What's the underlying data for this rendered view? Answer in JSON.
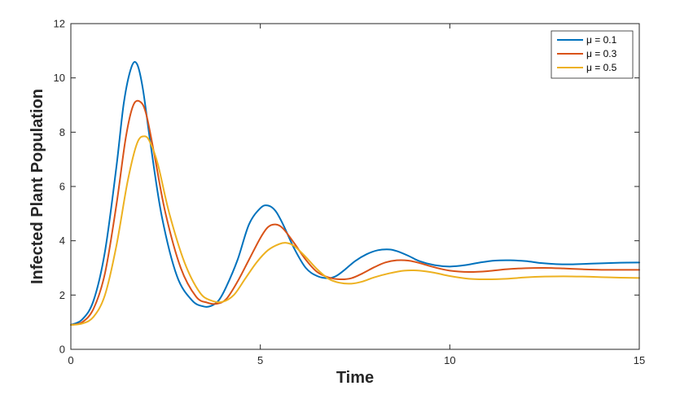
{
  "chart_data": {
    "type": "line",
    "title": "",
    "xlabel": "Time",
    "ylabel": "Infected Plant Population",
    "xlim": [
      0,
      15
    ],
    "ylim": [
      0,
      12
    ],
    "xticks": [
      0,
      5,
      10,
      15
    ],
    "yticks": [
      0,
      2,
      4,
      6,
      8,
      10,
      12
    ],
    "grid": false,
    "legend_position": "top-right",
    "series": [
      {
        "name": "μ = 0.1",
        "color": "#0072BD",
        "x": [
          0,
          0.3,
          0.6,
          0.9,
          1.2,
          1.4,
          1.6,
          1.75,
          1.9,
          2.1,
          2.4,
          2.8,
          3.2,
          3.5,
          3.7,
          3.9,
          4.1,
          4.4,
          4.7,
          5.0,
          5.2,
          5.4,
          5.6,
          5.9,
          6.2,
          6.5,
          6.8,
          7.0,
          7.2,
          7.5,
          7.8,
          8.1,
          8.4,
          8.6,
          8.9,
          9.2,
          9.6,
          10.0,
          10.4,
          10.8,
          11.2,
          11.6,
          12.0,
          12.4,
          12.8,
          13.2,
          13.6,
          14.0,
          14.5,
          15.0
        ],
        "y": [
          0.9,
          1.1,
          1.8,
          3.6,
          6.7,
          9.1,
          10.4,
          10.5,
          9.6,
          7.6,
          4.9,
          2.7,
          1.8,
          1.58,
          1.6,
          1.8,
          2.3,
          3.3,
          4.6,
          5.2,
          5.3,
          5.1,
          4.6,
          3.7,
          3.0,
          2.7,
          2.62,
          2.7,
          2.9,
          3.25,
          3.5,
          3.65,
          3.68,
          3.62,
          3.45,
          3.25,
          3.1,
          3.05,
          3.1,
          3.2,
          3.27,
          3.28,
          3.25,
          3.18,
          3.14,
          3.13,
          3.15,
          3.17,
          3.19,
          3.2
        ]
      },
      {
        "name": "μ = 0.3",
        "color": "#D95319",
        "x": [
          0,
          0.3,
          0.6,
          0.9,
          1.2,
          1.45,
          1.65,
          1.85,
          2.0,
          2.2,
          2.5,
          2.9,
          3.3,
          3.6,
          3.85,
          4.1,
          4.4,
          4.7,
          5.0,
          5.2,
          5.4,
          5.6,
          5.9,
          6.2,
          6.5,
          6.8,
          7.1,
          7.4,
          7.7,
          8.0,
          8.3,
          8.6,
          8.9,
          9.2,
          9.6,
          10.0,
          10.5,
          11.0,
          11.5,
          12.0,
          12.5,
          13.0,
          13.5,
          14.0,
          14.5,
          15.0
        ],
        "y": [
          0.9,
          1.0,
          1.5,
          2.8,
          5.3,
          7.8,
          9.0,
          9.1,
          8.6,
          7.2,
          5.0,
          3.0,
          1.95,
          1.72,
          1.68,
          1.85,
          2.5,
          3.3,
          4.1,
          4.5,
          4.6,
          4.45,
          3.9,
          3.3,
          2.85,
          2.65,
          2.58,
          2.62,
          2.8,
          3.02,
          3.2,
          3.28,
          3.27,
          3.18,
          3.02,
          2.9,
          2.85,
          2.88,
          2.95,
          2.99,
          3.0,
          2.98,
          2.95,
          2.93,
          2.93,
          2.93
        ]
      },
      {
        "name": "μ = 0.5",
        "color": "#EDB120",
        "x": [
          0,
          0.3,
          0.6,
          0.9,
          1.2,
          1.5,
          1.75,
          1.95,
          2.1,
          2.3,
          2.6,
          3.0,
          3.4,
          3.7,
          4.0,
          4.3,
          4.6,
          4.9,
          5.2,
          5.5,
          5.7,
          5.9,
          6.2,
          6.5,
          6.8,
          7.1,
          7.4,
          7.7,
          8.0,
          8.4,
          8.8,
          9.2,
          9.6,
          10.0,
          10.5,
          11.0,
          11.5,
          12.0,
          12.5,
          13.0,
          13.5,
          14.0,
          14.5,
          15.0
        ],
        "y": [
          0.9,
          0.95,
          1.2,
          2.0,
          3.8,
          6.2,
          7.6,
          7.85,
          7.6,
          6.8,
          5.0,
          3.2,
          2.1,
          1.8,
          1.75,
          2.0,
          2.6,
          3.2,
          3.65,
          3.88,
          3.92,
          3.8,
          3.4,
          2.95,
          2.6,
          2.45,
          2.42,
          2.5,
          2.65,
          2.8,
          2.9,
          2.9,
          2.82,
          2.7,
          2.6,
          2.58,
          2.6,
          2.65,
          2.68,
          2.69,
          2.68,
          2.66,
          2.64,
          2.63
        ]
      }
    ]
  }
}
